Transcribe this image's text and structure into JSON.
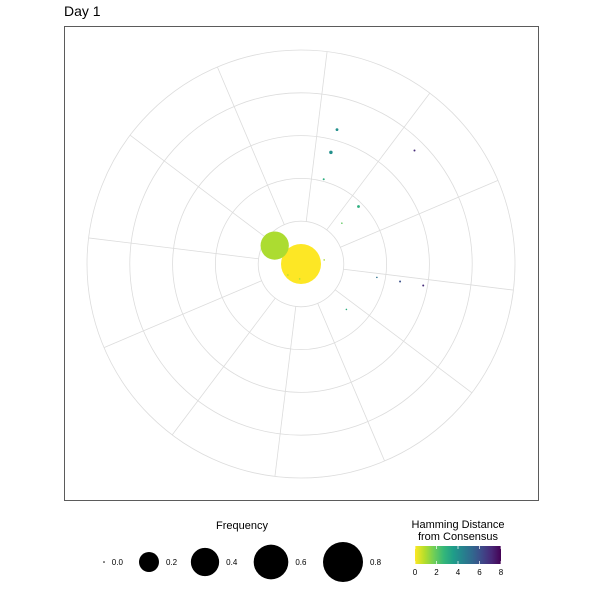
{
  "title": "Day 1",
  "chart_data": {
    "type": "scatter",
    "coordinate_system": "polar",
    "rings": 5,
    "spokes": 12,
    "grid": true,
    "points": [
      {
        "angle_deg": -35,
        "radius": 0.0,
        "frequency": 0.8,
        "hamming": 0
      },
      {
        "angle_deg": 145,
        "radius": 0.15,
        "frequency": 0.4,
        "hamming": 1
      },
      {
        "angle_deg": 75,
        "radius": 0.65,
        "frequency": 0.004,
        "hamming": 4
      },
      {
        "angle_deg": 75,
        "radius": 0.54,
        "frequency": 0.006,
        "hamming": 4
      },
      {
        "angle_deg": 75,
        "radius": 0.41,
        "frequency": 0.002,
        "hamming": 3
      },
      {
        "angle_deg": 45,
        "radius": 0.75,
        "frequency": 0.002,
        "hamming": 7
      },
      {
        "angle_deg": 45,
        "radius": 0.38,
        "frequency": 0.004,
        "hamming": 3
      },
      {
        "angle_deg": 45,
        "radius": 0.27,
        "frequency": 0.001,
        "hamming": 2
      },
      {
        "angle_deg": -10,
        "radius": 0.58,
        "frequency": 0.002,
        "hamming": 7
      },
      {
        "angle_deg": -10,
        "radius": 0.47,
        "frequency": 0.002,
        "hamming": 6
      },
      {
        "angle_deg": -10,
        "radius": 0.36,
        "frequency": 0.001,
        "hamming": 5
      },
      {
        "angle_deg": -45,
        "radius": 0.3,
        "frequency": 0.001,
        "hamming": 3
      },
      {
        "angle_deg": 220,
        "radius": 0.08,
        "frequency": 0.001,
        "hamming": 1
      },
      {
        "angle_deg": 265,
        "radius": 0.07,
        "frequency": 0.001,
        "hamming": 1
      },
      {
        "angle_deg": 10,
        "radius": 0.11,
        "frequency": 0.001,
        "hamming": 1
      }
    ],
    "size_legend": {
      "title": "Frequency",
      "values": [
        0.0,
        0.2,
        0.4,
        0.6,
        0.8
      ],
      "labels": [
        "0.0",
        "0.2",
        "0.4",
        "0.6",
        "0.8"
      ]
    },
    "color_legend": {
      "title_line1": "Hamming Distance",
      "title_line2": "from Consensus",
      "range": [
        0,
        8
      ],
      "ticks": [
        0,
        2,
        4,
        6,
        8
      ],
      "tick_labels": [
        "0",
        "2",
        "4",
        "6",
        "8"
      ],
      "palette": [
        "#fde725",
        "#b5de2b",
        "#6ece58",
        "#35b779",
        "#1f9e89",
        "#26828e",
        "#31688e",
        "#3e4989",
        "#482878",
        "#440154"
      ]
    }
  }
}
